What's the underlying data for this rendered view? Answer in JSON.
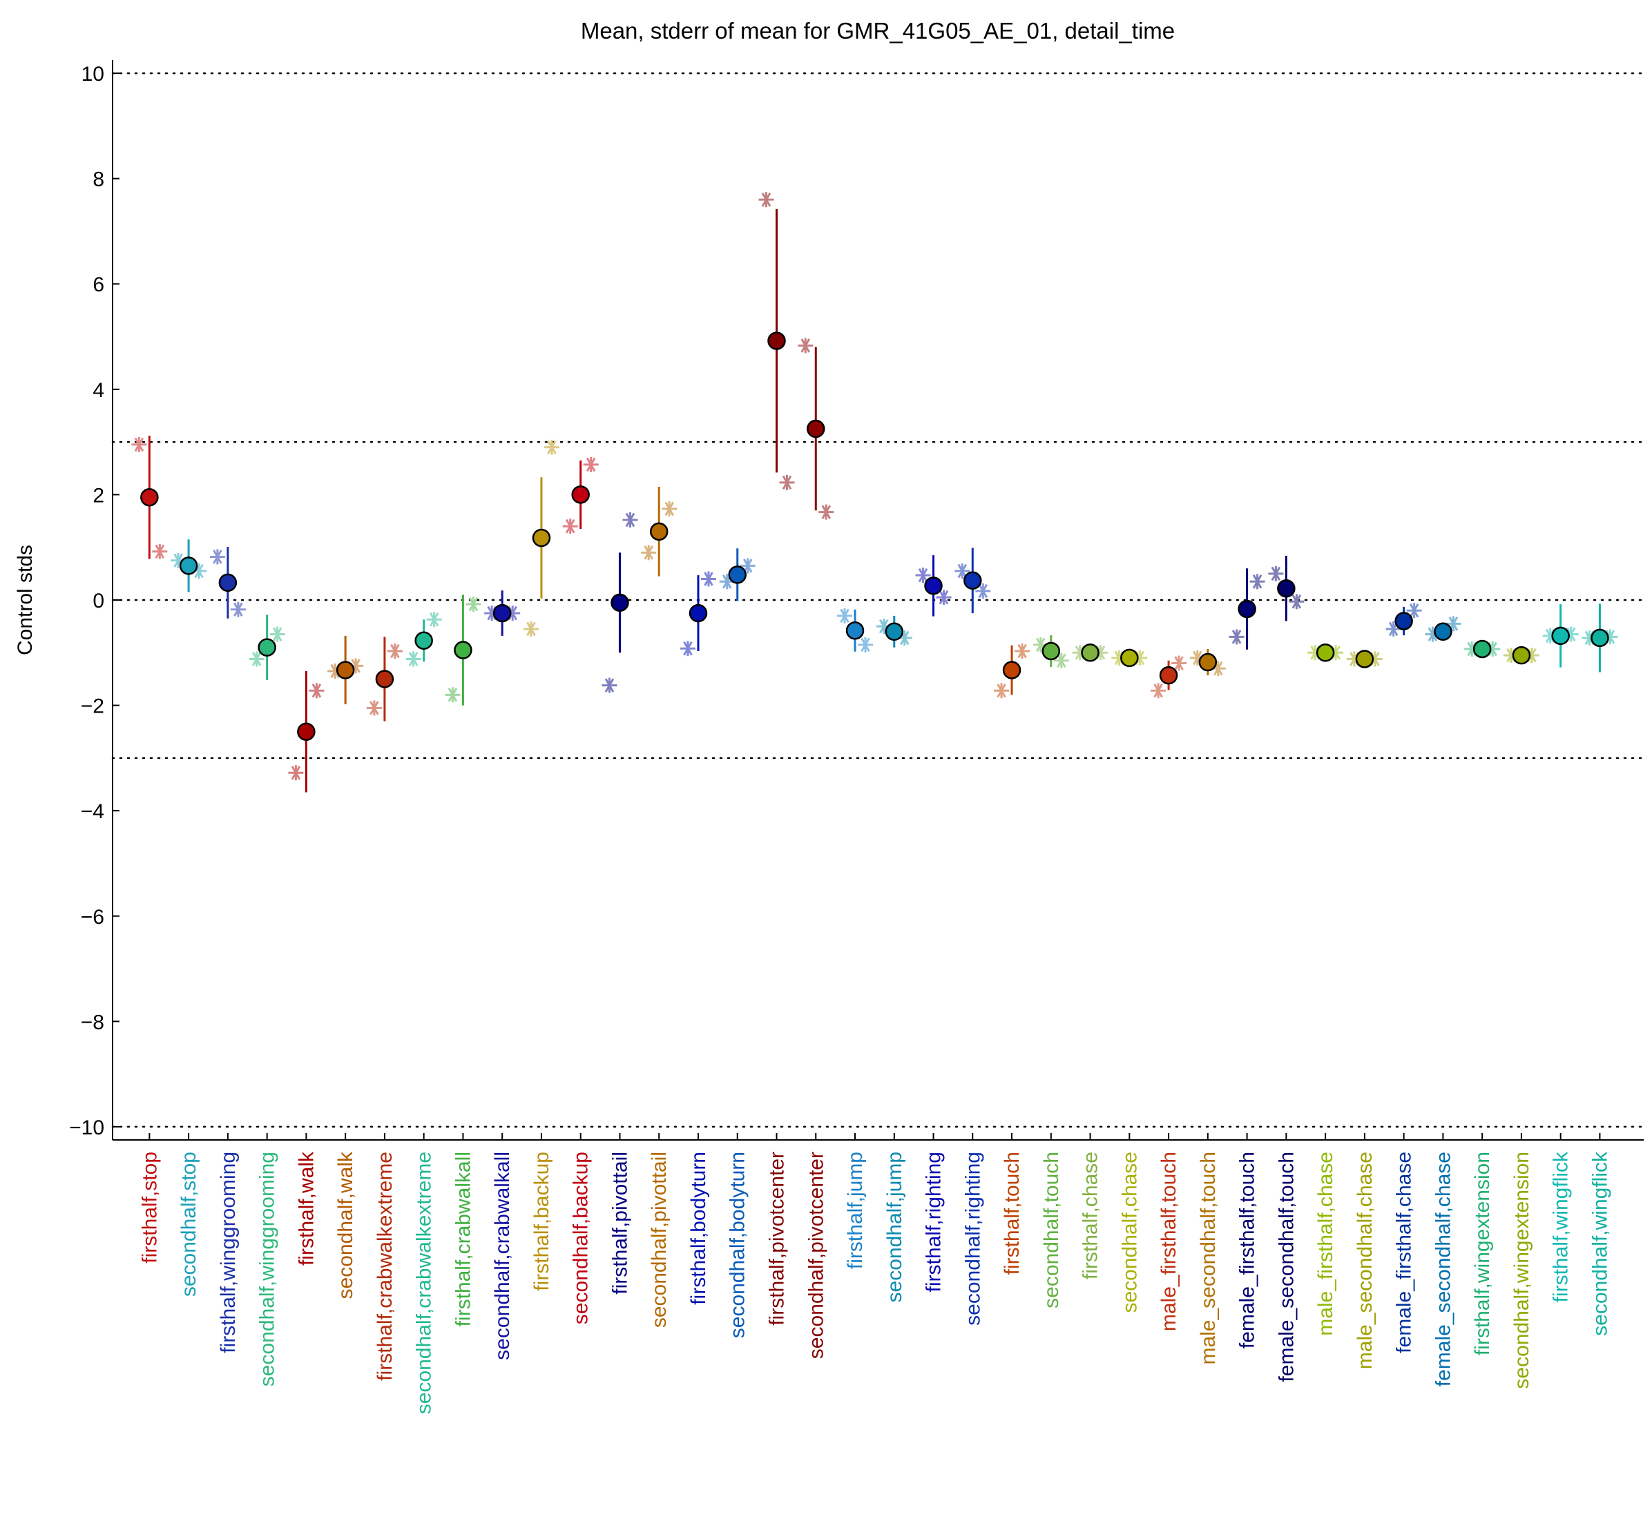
{
  "chart_data": {
    "type": "errorbar",
    "title": "Mean, stderr of mean for GMR_41G05_AE_01, detail_time",
    "ylabel": "Control stds",
    "categories": [
      "firsthalf,stop",
      "secondhalf,stop",
      "firsthalf,winggrooming",
      "secondhalf,winggrooming",
      "firsthalf,walk",
      "secondhalf,walk",
      "firsthalf,crabwalkextreme",
      "secondhalf,crabwalkextreme",
      "firsthalf,crabwalkall",
      "secondhalf,crabwalkall",
      "firsthalf,backup",
      "secondhalf,backup",
      "firsthalf,pivottail",
      "secondhalf,pivottail",
      "firsthalf,bodyturn",
      "secondhalf,bodyturn",
      "firsthalf,pivotcenter",
      "secondhalf,pivotcenter",
      "firsthalf,jump",
      "secondhalf,jump",
      "firsthalf,righting",
      "secondhalf,righting",
      "firsthalf,touch",
      "secondhalf,touch",
      "firsthalf,chase",
      "secondhalf,chase",
      "male_firsthalf,touch",
      "male_secondhalf,touch",
      "female_firsthalf,touch",
      "female_secondhalf,touch",
      "male_firsthalf,chase",
      "male_secondhalf,chase",
      "female_firsthalf,chase",
      "female_secondhalf,chase",
      "firsthalf,wingextension",
      "secondhalf,wingextension",
      "firsthalf,wingflick",
      "secondhalf,wingflick"
    ],
    "values": [
      1.95,
      0.65,
      0.33,
      -0.9,
      -2.5,
      -1.33,
      -1.5,
      -0.77,
      -0.95,
      -0.25,
      1.18,
      2.0,
      -0.05,
      1.3,
      -0.25,
      0.48,
      4.92,
      3.25,
      -0.58,
      -0.6,
      0.27,
      0.37,
      -1.33,
      -0.97,
      -1.0,
      -1.1,
      -1.43,
      -1.18,
      -0.17,
      0.22,
      -1.0,
      -1.12,
      -0.4,
      -0.6,
      -0.93,
      -1.05,
      -0.68,
      -0.72
    ],
    "errors": [
      1.17,
      0.5,
      0.68,
      0.62,
      1.15,
      0.65,
      0.8,
      0.4,
      1.05,
      0.43,
      1.15,
      0.65,
      0.95,
      0.85,
      0.72,
      0.5,
      2.5,
      1.55,
      0.4,
      0.3,
      0.58,
      0.62,
      0.47,
      0.3,
      0.05,
      0.05,
      0.28,
      0.25,
      0.77,
      0.62,
      0.05,
      0.05,
      0.27,
      0.1,
      0.08,
      0.05,
      0.6,
      0.65
    ],
    "left_values": [
      2.95,
      0.75,
      0.82,
      -1.12,
      -3.28,
      -1.35,
      -2.05,
      -1.12,
      -1.8,
      -0.25,
      -0.55,
      1.4,
      -1.62,
      0.9,
      -0.92,
      0.35,
      7.6,
      4.83,
      -0.3,
      -0.5,
      0.47,
      0.55,
      -1.72,
      -0.85,
      -1.0,
      -1.1,
      -1.72,
      -1.1,
      -0.7,
      0.5,
      -1.0,
      -1.12,
      -0.55,
      -0.65,
      -0.93,
      -1.05,
      -0.68,
      -0.72
    ],
    "right_values": [
      0.92,
      0.55,
      -0.18,
      -0.65,
      -1.72,
      -1.25,
      -0.97,
      -0.37,
      -0.08,
      -0.25,
      2.9,
      2.57,
      1.52,
      1.73,
      0.4,
      0.65,
      2.23,
      1.67,
      -0.85,
      -0.72,
      0.05,
      0.17,
      -0.97,
      -1.15,
      -1.0,
      -1.1,
      -1.2,
      -1.3,
      0.35,
      -0.03,
      -1.0,
      -1.12,
      -0.2,
      -0.45,
      -0.93,
      -1.05,
      -0.65,
      -0.7
    ],
    "colors": [
      "#c01010",
      "#1aa0b8",
      "#1a2fa8",
      "#2db87a",
      "#a80000",
      "#b35a00",
      "#b32a0a",
      "#20b890",
      "#40b040",
      "#1010a0",
      "#b8900a",
      "#c00010",
      "#000080",
      "#b36a00",
      "#0010b0",
      "#0a5ab8",
      "#800000",
      "#8b0000",
      "#1a80c8",
      "#0a8ab0",
      "#0a0ab0",
      "#0a30b0",
      "#c04000",
      "#60b040",
      "#80b040",
      "#a8b000",
      "#c03010",
      "#b07000",
      "#000070",
      "#000068",
      "#90b800",
      "#a0a000",
      "#0030a0",
      "#0070b0",
      "#20b070",
      "#90a800",
      "#10b8b0",
      "#10b0a0"
    ],
    "ylim": [
      -10.25,
      10.25
    ],
    "yticks": [
      {
        "value": -10,
        "label": "−10"
      },
      {
        "value": -8,
        "label": "−8"
      },
      {
        "value": -6,
        "label": "−6"
      },
      {
        "value": -4,
        "label": "−4"
      },
      {
        "value": -2,
        "label": "−2"
      },
      0,
      2,
      4,
      6,
      8,
      10
    ],
    "hlines": [
      -10,
      -3,
      0,
      3,
      10
    ]
  }
}
